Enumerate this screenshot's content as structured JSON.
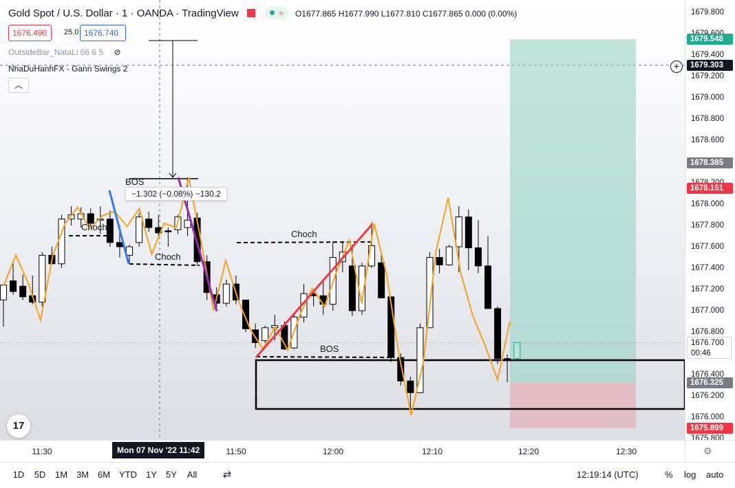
{
  "header": {
    "symbol": "Gold Spot / U.S. Dollar · 1 · OANDA · TradingView",
    "ohlc": {
      "o": "O1677.865",
      "h": "H1677.990",
      "l": "L1677.810",
      "c": "C1677.865",
      "chg": "0.000 (0.00%)"
    },
    "bid": "1676.490",
    "spread": "25.0",
    "ask": "1676.740",
    "indicator1": "OutsideBar_NataLi 66 6 5",
    "indicator2": "NhaDuHanhFX - Gann Swings 2",
    "status_pill": "≈"
  },
  "chart_data": {
    "type": "candlestick",
    "symbol": "XAUUSD",
    "timeframe": "1m",
    "x_ticks": [
      "11:30",
      "11:50",
      "12:00",
      "12:10",
      "12:20",
      "12:30"
    ],
    "y_ticks": [
      "1679.800",
      "1679.600",
      "1679.400",
      "1679.200",
      "1679.000",
      "1678.800",
      "1678.600",
      "1678.400",
      "1678.200",
      "1678.000",
      "1677.800",
      "1677.600",
      "1677.400",
      "1677.200",
      "1677.000",
      "1676.800",
      "1676.600",
      "1676.400",
      "1676.200",
      "1676.000",
      "1675.800"
    ],
    "ylim": [
      1675.77,
      1679.87
    ],
    "candles": [
      {
        "o": 1677.1,
        "h": 1677.25,
        "l": 1676.85,
        "c": 1677.24
      },
      {
        "o": 1677.28,
        "h": 1677.47,
        "l": 1677.15,
        "c": 1677.18
      },
      {
        "o": 1677.23,
        "h": 1677.34,
        "l": 1677.1,
        "c": 1677.13
      },
      {
        "o": 1677.14,
        "h": 1677.33,
        "l": 1677.06,
        "c": 1677.08
      },
      {
        "o": 1677.08,
        "h": 1677.55,
        "l": 1677.04,
        "c": 1677.52
      },
      {
        "o": 1677.52,
        "h": 1677.6,
        "l": 1677.44,
        "c": 1677.44
      },
      {
        "o": 1677.44,
        "h": 1677.9,
        "l": 1677.4,
        "c": 1677.86
      },
      {
        "o": 1677.86,
        "h": 1677.98,
        "l": 1677.8,
        "c": 1677.9
      },
      {
        "o": 1677.86,
        "h": 1677.97,
        "l": 1677.78,
        "c": 1677.91
      },
      {
        "o": 1677.91,
        "h": 1677.96,
        "l": 1677.8,
        "c": 1677.82
      },
      {
        "o": 1677.85,
        "h": 1677.98,
        "l": 1677.72,
        "c": 1677.86
      },
      {
        "o": 1677.86,
        "h": 1677.94,
        "l": 1677.6,
        "c": 1677.64
      },
      {
        "o": 1677.64,
        "h": 1677.8,
        "l": 1677.5,
        "c": 1677.6
      },
      {
        "o": 1677.52,
        "h": 1677.62,
        "l": 1677.45,
        "c": 1677.6
      },
      {
        "o": 1677.64,
        "h": 1677.92,
        "l": 1677.6,
        "c": 1677.88
      },
      {
        "o": 1677.86,
        "h": 1677.93,
        "l": 1677.74,
        "c": 1677.78
      },
      {
        "o": 1677.78,
        "h": 1677.9,
        "l": 1677.7,
        "c": 1677.73
      },
      {
        "o": 1677.75,
        "h": 1677.78,
        "l": 1677.6,
        "c": 1677.74
      },
      {
        "o": 1677.76,
        "h": 1677.9,
        "l": 1677.72,
        "c": 1677.88
      },
      {
        "o": 1677.78,
        "h": 1678.25,
        "l": 1677.7,
        "c": 1677.85
      },
      {
        "o": 1677.87,
        "h": 1677.92,
        "l": 1677.42,
        "c": 1677.46
      },
      {
        "o": 1677.46,
        "h": 1677.52,
        "l": 1677.1,
        "c": 1677.17
      },
      {
        "o": 1677.15,
        "h": 1677.22,
        "l": 1677.02,
        "c": 1677.07
      },
      {
        "o": 1677.07,
        "h": 1677.29,
        "l": 1677.04,
        "c": 1677.25
      },
      {
        "o": 1677.25,
        "h": 1677.33,
        "l": 1677.06,
        "c": 1677.1
      },
      {
        "o": 1677.1,
        "h": 1677.1,
        "l": 1676.8,
        "c": 1676.83
      },
      {
        "o": 1676.82,
        "h": 1676.88,
        "l": 1676.65,
        "c": 1676.7
      },
      {
        "o": 1676.72,
        "h": 1676.86,
        "l": 1676.7,
        "c": 1676.84
      },
      {
        "o": 1676.84,
        "h": 1676.96,
        "l": 1676.72,
        "c": 1676.86
      },
      {
        "o": 1676.86,
        "h": 1676.9,
        "l": 1676.63,
        "c": 1676.64
      },
      {
        "o": 1676.65,
        "h": 1676.97,
        "l": 1676.64,
        "c": 1676.94
      },
      {
        "o": 1676.94,
        "h": 1677.25,
        "l": 1676.89,
        "c": 1677.16
      },
      {
        "o": 1677.16,
        "h": 1677.2,
        "l": 1677.04,
        "c": 1677.14
      },
      {
        "o": 1677.14,
        "h": 1677.3,
        "l": 1676.96,
        "c": 1677.06
      },
      {
        "o": 1677.06,
        "h": 1677.65,
        "l": 1677.0,
        "c": 1677.5
      },
      {
        "o": 1677.46,
        "h": 1677.65,
        "l": 1677.36,
        "c": 1677.55
      },
      {
        "o": 1677.42,
        "h": 1677.62,
        "l": 1676.95,
        "c": 1677.0
      },
      {
        "o": 1677.0,
        "h": 1677.45,
        "l": 1676.96,
        "c": 1677.42
      },
      {
        "o": 1677.42,
        "h": 1677.83,
        "l": 1677.4,
        "c": 1677.61
      },
      {
        "o": 1677.45,
        "h": 1677.55,
        "l": 1677.13,
        "c": 1677.12
      },
      {
        "o": 1677.13,
        "h": 1677.13,
        "l": 1676.52,
        "c": 1676.56
      },
      {
        "o": 1676.56,
        "h": 1676.6,
        "l": 1676.3,
        "c": 1676.34
      },
      {
        "o": 1676.34,
        "h": 1676.38,
        "l": 1676.06,
        "c": 1676.23
      },
      {
        "o": 1676.23,
        "h": 1676.88,
        "l": 1676.23,
        "c": 1676.84
      },
      {
        "o": 1676.84,
        "h": 1677.55,
        "l": 1676.84,
        "c": 1677.5
      },
      {
        "o": 1677.5,
        "h": 1677.58,
        "l": 1677.35,
        "c": 1677.43
      },
      {
        "o": 1677.43,
        "h": 1677.62,
        "l": 1677.42,
        "c": 1677.6
      },
      {
        "o": 1677.6,
        "h": 1677.98,
        "l": 1677.36,
        "c": 1677.88
      },
      {
        "o": 1677.88,
        "h": 1677.95,
        "l": 1677.38,
        "c": 1677.59
      },
      {
        "o": 1677.59,
        "h": 1677.85,
        "l": 1677.35,
        "c": 1677.42
      },
      {
        "o": 1677.42,
        "h": 1677.7,
        "l": 1677.05,
        "c": 1677.02
      },
      {
        "o": 1677.02,
        "h": 1677.04,
        "l": 1676.5,
        "c": 1676.55
      },
      {
        "o": 1676.55,
        "h": 1676.59,
        "l": 1676.33,
        "c": 1676.53
      },
      {
        "o": 1676.55,
        "h": 1676.7,
        "l": 1676.54,
        "c": 1676.7
      }
    ],
    "swing_line": [
      1677.23,
      1677.52,
      1677.26,
      1676.91,
      1677.52,
      1677.82,
      1677.97,
      1677.77,
      1677.89,
      1677.93,
      1677.79,
      1677.96,
      1677.53,
      1677.82,
      1677.78,
      1678.25,
      1677.65,
      1677.0,
      1677.47,
      1677.1,
      1676.82,
      1676.64,
      1676.85,
      1676.63,
      1676.96,
      1677.21,
      1677.04,
      1677.38,
      1677.66,
      1677.07,
      1677.82,
      1677.35,
      1676.6,
      1676.02,
      1676.52,
      1677.55,
      1678.06,
      1677.36,
      1676.95,
      1676.67,
      1676.35,
      1676.9
    ],
    "annotations": {
      "choch_labels": [
        "Choch",
        "Choch",
        "Choch"
      ],
      "bos_labels": [
        "BOS",
        "BOS"
      ],
      "measure_tooltip": "−1.302 (−0.08%) −130.2"
    },
    "position": {
      "target": 1679.548,
      "entry": 1676.325,
      "stop": 1675.899
    },
    "price_labels": {
      "target": "1679.548",
      "crosshair": "1679.303",
      "level_grey": "1678.385",
      "level_red": "1678.151",
      "current": "1676.700",
      "countdown": "00:46",
      "entry": "1676.325",
      "stop": "1675.899"
    },
    "cursor_time_label": "Mon 07 Nov '22  11:42"
  },
  "colors": {
    "up_body": "#ffffff",
    "down_body": "#000000",
    "swing": "#f7a21b",
    "choch_blue": "#3179f5",
    "purple": "#9c27b0",
    "red_line": "#f23645",
    "target_zone": "#8fd1c1",
    "stop_zone": "#e8a0a8",
    "label_dark": "#434651",
    "label_red": "#f23645",
    "label_green": "#22ab94"
  },
  "bottom_toolbar": {
    "ranges": [
      "1D",
      "5D",
      "1M",
      "3M",
      "6M",
      "YTD",
      "1Y",
      "5Y",
      "All"
    ],
    "clock": "12:19:14 (UTC)",
    "percent": "%",
    "log": "log",
    "auto": "auto"
  },
  "logo_text": "17"
}
